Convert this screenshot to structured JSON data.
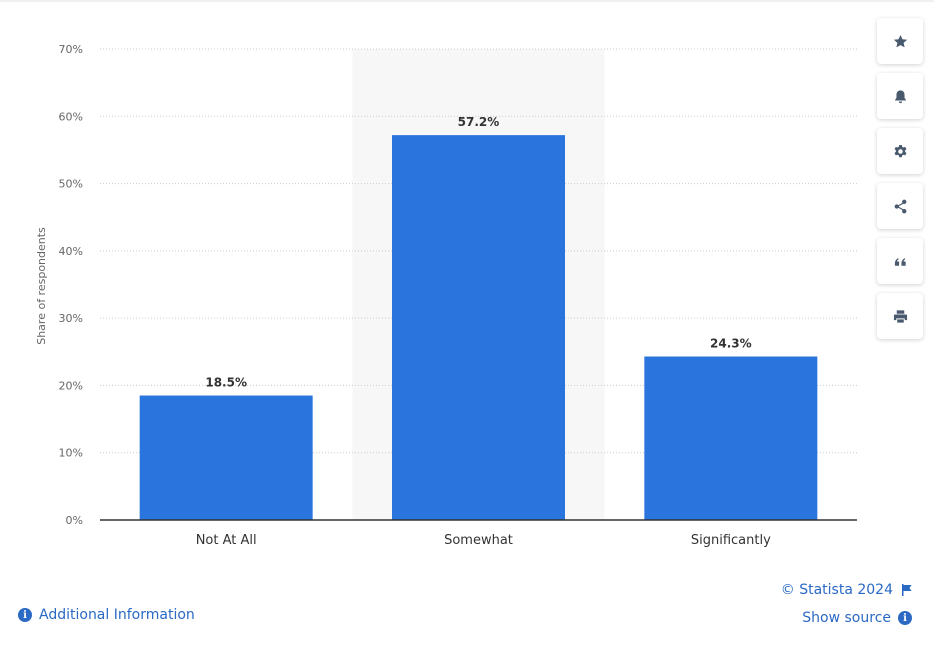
{
  "chart_data": {
    "type": "bar",
    "categories": [
      "Not At All",
      "Somewhat",
      "Significantly"
    ],
    "values": [
      18.5,
      57.2,
      24.3
    ],
    "value_labels": [
      "18.5%",
      "57.2%",
      "24.3%"
    ],
    "title": "",
    "xlabel": "",
    "ylabel": "Share of respondents",
    "ylim": [
      0,
      70
    ],
    "yticks": [
      "0%",
      "10%",
      "20%",
      "30%",
      "40%",
      "50%",
      "60%",
      "70%"
    ],
    "grid": true,
    "bar_color": "#2a75dd",
    "highlighted_category": "Somewhat"
  },
  "toolbar": {
    "icons": [
      "star-icon",
      "bell-icon",
      "gear-icon",
      "share-icon",
      "quote-icon",
      "print-icon"
    ]
  },
  "footer": {
    "copyright": "© Statista 2024",
    "show_source": "Show source",
    "additional_info": "Additional Information"
  },
  "colors": {
    "link": "#2a69c4",
    "icon": "#4a5a6e",
    "grid": "#cccccc",
    "highlight_band": "#f7f7f7"
  }
}
